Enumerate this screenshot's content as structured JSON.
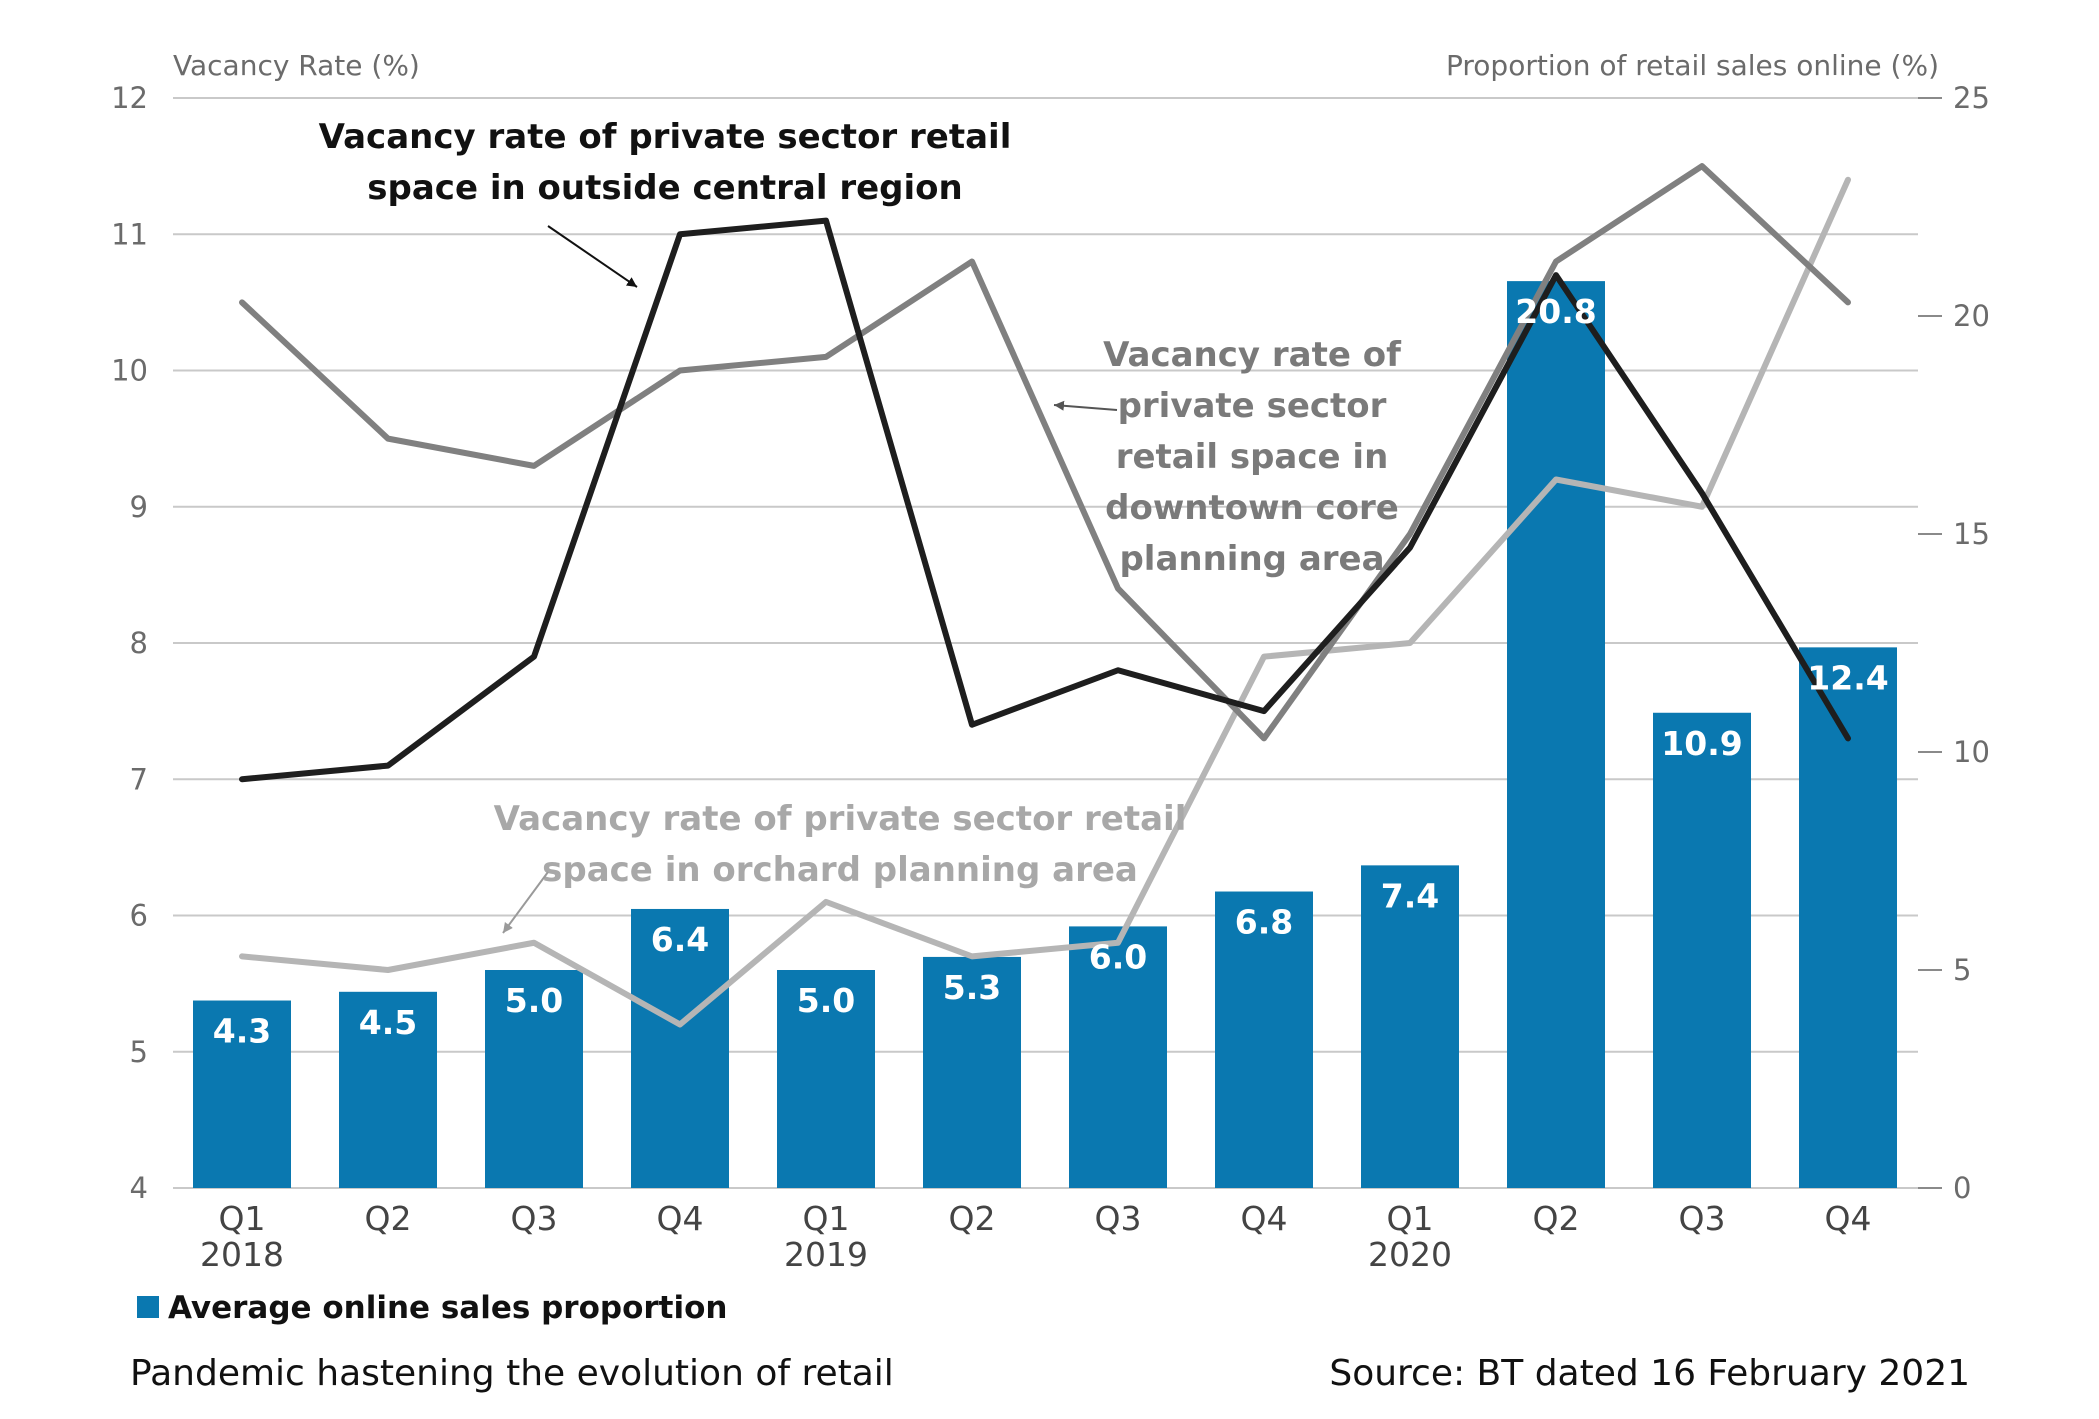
{
  "chart_data": {
    "type": "bar",
    "y_left_label": "Vacancy Rate (%)",
    "y_right_label": "Proportion of retail sales online (%)",
    "y_left_range": [
      4,
      12
    ],
    "y_right_range": [
      0,
      25
    ],
    "y_left_ticks": [
      4,
      5,
      6,
      7,
      8,
      9,
      10,
      11,
      12
    ],
    "y_right_ticks": [
      0,
      5,
      10,
      15,
      20,
      25
    ],
    "categories": [
      "Q1",
      "Q2",
      "Q3",
      "Q4",
      "Q1",
      "Q2",
      "Q3",
      "Q4",
      "Q1",
      "Q2",
      "Q3",
      "Q4"
    ],
    "year_labels": [
      {
        "index": 0,
        "label": "2018"
      },
      {
        "index": 4,
        "label": "2019"
      },
      {
        "index": 8,
        "label": "2020"
      }
    ],
    "grid": true,
    "legend_position": "bottom-left",
    "bar_series": {
      "name": "Average online sales proportion",
      "axis": "right",
      "color": "#0a78b0",
      "values": [
        4.3,
        4.5,
        5.0,
        6.4,
        5.0,
        5.3,
        6.0,
        6.8,
        7.4,
        20.8,
        10.9,
        12.4
      ]
    },
    "line_series": [
      {
        "name": "Vacancy rate of private sector retail space in outside central region",
        "axis": "left",
        "color": "#1e1e1e",
        "values": [
          7.0,
          7.1,
          7.9,
          11.0,
          11.1,
          7.4,
          7.8,
          7.5,
          8.7,
          10.7,
          9.1,
          7.3
        ]
      },
      {
        "name": "Vacancy rate of private sector retail space in downtown core planning area",
        "axis": "left",
        "color": "#808080",
        "values": [
          10.5,
          9.5,
          9.3,
          10.0,
          10.1,
          10.8,
          8.4,
          7.3,
          8.8,
          10.8,
          11.5,
          10.5
        ]
      },
      {
        "name": "Vacancy rate of private sector retail space in orchard planning area",
        "axis": "left",
        "color": "#b5b5b5",
        "values": [
          5.7,
          5.6,
          5.8,
          5.2,
          6.1,
          5.7,
          5.8,
          7.9,
          8.0,
          9.2,
          9.0,
          11.4
        ]
      }
    ],
    "annotations": {
      "outside_central": [
        "Vacancy rate of private sector retail",
        "space in outside central region"
      ],
      "downtown": [
        "Vacancy rate of",
        "private sector",
        "retail space in",
        "downtown core",
        "planning area"
      ],
      "orchard": [
        "Vacancy rate of private sector retail",
        "space in orchard planning area"
      ]
    }
  },
  "legend": {
    "label": "Average online sales proportion",
    "color": "#0a78b0"
  },
  "footer": {
    "caption": "Pandemic hastening the evolution of retail",
    "source": "Source: BT dated 16 February 2021"
  }
}
